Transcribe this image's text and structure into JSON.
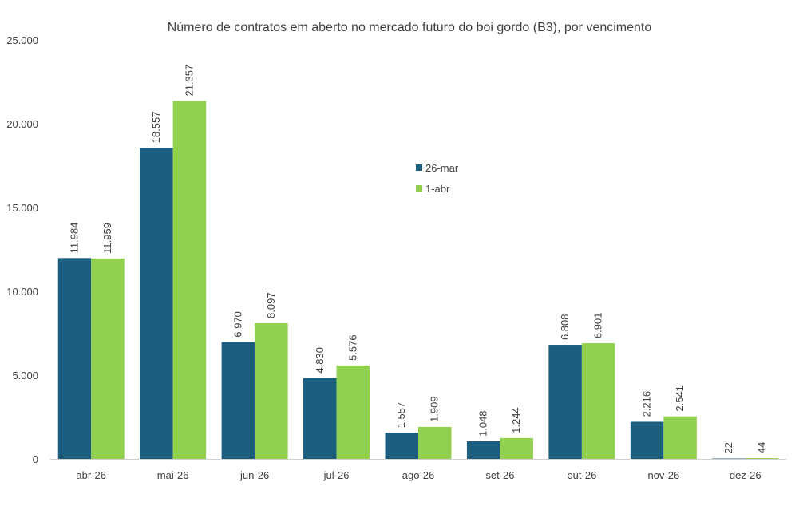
{
  "chart_data": {
    "type": "bar",
    "title": "Número de contratos em aberto no mercado futuro do boi gordo (B3), por vencimento",
    "xlabel": "",
    "ylabel": "",
    "ylim": [
      0,
      25000
    ],
    "yticks": [
      "0",
      "5.000",
      "10.000",
      "15.000",
      "20.000",
      "25.000"
    ],
    "grid": false,
    "legend_position": "center",
    "categories": [
      "abr-26",
      "mai-26",
      "jun-26",
      "jul-26",
      "ago-26",
      "set-26",
      "out-26",
      "nov-26",
      "dez-26"
    ],
    "series": [
      {
        "name": "26-mar",
        "color": "#1b5e7f",
        "values": [
          11984,
          18557,
          6970,
          4830,
          1557,
          1048,
          6808,
          2216,
          22
        ],
        "labels": [
          "11.984",
          "18.557",
          "6.970",
          "4.830",
          "1.557",
          "1.048",
          "6.808",
          "2.216",
          "22"
        ]
      },
      {
        "name": "1-abr",
        "color": "#92d050",
        "values": [
          11959,
          21357,
          8097,
          5576,
          1909,
          1244,
          6901,
          2541,
          44
        ],
        "labels": [
          "11.959",
          "21.357",
          "8.097",
          "5.576",
          "1.909",
          "1.244",
          "6.901",
          "2.541",
          "44"
        ]
      }
    ]
  }
}
